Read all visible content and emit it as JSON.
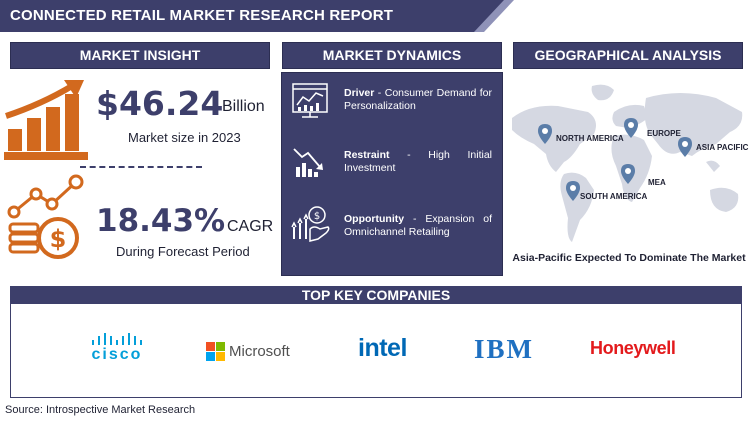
{
  "title": "CONNECTED RETAIL MARKET RESEARCH REPORT",
  "headers": {
    "insight": "MARKET INSIGHT",
    "dynamics": "MARKET DYNAMICS",
    "geo": "GEOGRAPHICAL ANALYSIS",
    "companies": "TOP KEY COMPANIES"
  },
  "insight": {
    "size_value": "$46.24",
    "size_unit": "Billion",
    "size_caption": "Market size in 2023",
    "cagr_value": "18.43%",
    "cagr_unit": "CAGR",
    "cagr_caption": "During Forecast Period"
  },
  "dynamics": [
    {
      "label": "Driver",
      "text": " - Consumer Demand for Personalization",
      "icon": "dashboard-chart-icon"
    },
    {
      "label": "Restraint",
      "text": " - High Initial Investment",
      "icon": "declining-chart-icon"
    },
    {
      "label": "Opportunity",
      "text": " - Expansion of Omnichannel Retailing",
      "icon": "growth-coin-hand-icon"
    }
  ],
  "geo": {
    "regions": [
      "NORTH AMERICA",
      "EUROPE",
      "ASIA PACIFIC",
      "MEA",
      "SOUTH AMERICA"
    ],
    "caption": "Asia-Pacific Expected To Dominate The Market"
  },
  "companies": [
    {
      "name": "cisco",
      "color": "#049fd9"
    },
    {
      "name": "Microsoft",
      "color": "#505050"
    },
    {
      "name": "intel",
      "color": "#0068b5"
    },
    {
      "name": "IBM",
      "color": "#1f70c1"
    },
    {
      "name": "Honeywell",
      "color": "#e31a1c"
    }
  ],
  "colors": {
    "navy": "#3d3f6b",
    "orange": "#d2691e",
    "pin": "#5b7da8"
  },
  "source": "Source: Introspective Market Research"
}
